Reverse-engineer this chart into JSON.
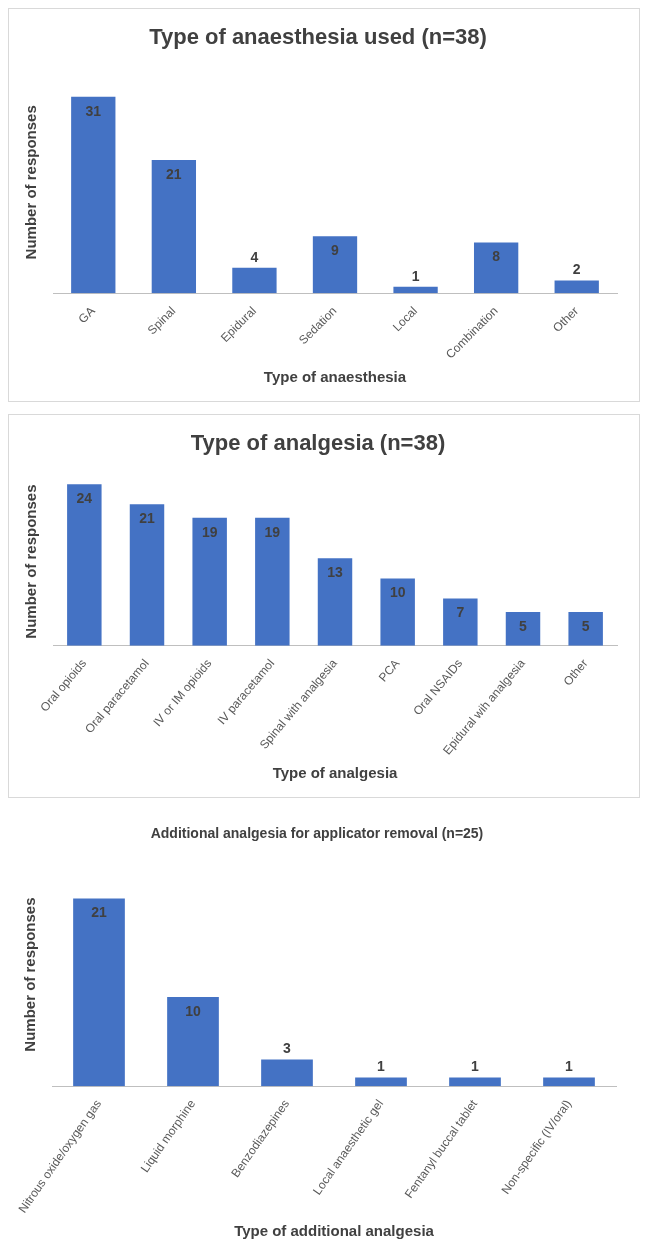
{
  "chart_data": [
    {
      "type": "bar",
      "title": "Type of anaesthesia used (n=38)",
      "xlabel": "Type of anaesthesia",
      "ylabel": "Number of responses",
      "categories": [
        "GA",
        "Spinal",
        "Epidural",
        "Sedation",
        "Local",
        "Combination",
        "Other"
      ],
      "values": [
        31,
        21,
        4,
        9,
        1,
        8,
        2
      ],
      "color": "#4472c4",
      "data_labels": true
    },
    {
      "type": "bar",
      "title": "Type of analgesia (n=38)",
      "xlabel": "Type of analgesia",
      "ylabel": "Number of responses",
      "categories": [
        "Oral opioids",
        "Oral paracetamol",
        "IV or IM opioids",
        "IV paracetamol",
        "Spinal with analgesia",
        "PCA",
        "Oral NSAIDs",
        "Epidural wih analgesia",
        "Other"
      ],
      "values": [
        24,
        21,
        19,
        19,
        13,
        10,
        7,
        5,
        5
      ],
      "color": "#4472c4",
      "data_labels": true
    },
    {
      "type": "bar",
      "title": "Additional analgesia for applicator removal (n=25)",
      "xlabel": "Type of additional analgesia",
      "ylabel": "Number of responses",
      "categories": [
        "Nitrous oxide/oxygen gas",
        "Liquid morphine",
        "Benzodiazepines",
        "Local anaesthetic gel",
        "Fentanyl buccal tablet",
        "Non-specific (IV/oral)"
      ],
      "values": [
        21,
        10,
        3,
        1,
        1,
        1
      ],
      "color": "#4472c4",
      "data_labels": true
    }
  ]
}
